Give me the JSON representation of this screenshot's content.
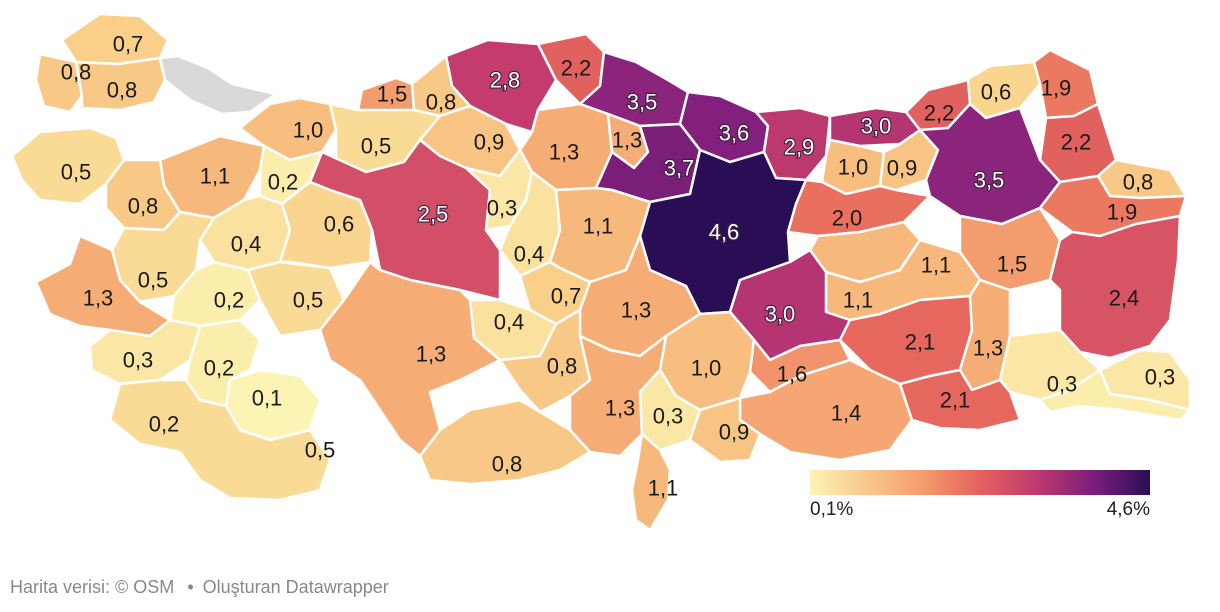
{
  "map": {
    "regions": [
      {
        "label": "0,7",
        "value": 0.7
      },
      {
        "label": "0,8",
        "value": 0.8
      },
      {
        "label": "0,8",
        "value": 0.8
      },
      {
        "label": "2,8",
        "value": 2.8
      },
      {
        "label": "2,2",
        "value": 2.2
      },
      {
        "label": "1,5",
        "value": 1.5
      },
      {
        "label": "0,8",
        "value": 0.8
      },
      {
        "label": "3,5",
        "value": 3.5
      },
      {
        "label": "0,6",
        "value": 0.6
      },
      {
        "label": "1,9",
        "value": 1.9
      },
      {
        "label": "1,0",
        "value": 1.0
      },
      {
        "label": "0,5",
        "value": 0.5
      },
      {
        "label": "0,9",
        "value": 0.9
      },
      {
        "label": "1,3",
        "value": 1.3
      },
      {
        "label": "1,3",
        "value": 1.3
      },
      {
        "label": "3,6",
        "value": 3.6
      },
      {
        "label": "2,9",
        "value": 2.9
      },
      {
        "label": "3,0",
        "value": 3.0
      },
      {
        "label": "2,2",
        "value": 2.2
      },
      {
        "label": "2,2",
        "value": 2.2
      },
      {
        "label": "0,5",
        "value": 0.5
      },
      {
        "label": "1,1",
        "value": 1.1
      },
      {
        "label": "0,2",
        "value": 0.2
      },
      {
        "label": "3,7",
        "value": 3.7
      },
      {
        "label": "1,0",
        "value": 1.0
      },
      {
        "label": "0,9",
        "value": 0.9
      },
      {
        "label": "3,5",
        "value": 3.5
      },
      {
        "label": "0,8",
        "value": 0.8
      },
      {
        "label": "0,8",
        "value": 0.8
      },
      {
        "label": "2,5",
        "value": 2.5
      },
      {
        "label": "0,3",
        "value": 0.3
      },
      {
        "label": "4,6",
        "value": 4.6
      },
      {
        "label": "2,0",
        "value": 2.0
      },
      {
        "label": "1,9",
        "value": 1.9
      },
      {
        "label": "0,4",
        "value": 0.4
      },
      {
        "label": "0,6",
        "value": 0.6
      },
      {
        "label": "1,1",
        "value": 1.1
      },
      {
        "label": "0,4",
        "value": 0.4
      },
      {
        "label": "1,1",
        "value": 1.1
      },
      {
        "label": "1,5",
        "value": 1.5
      },
      {
        "label": "0,5",
        "value": 0.5
      },
      {
        "label": "2,4",
        "value": 2.4
      },
      {
        "label": "1,3",
        "value": 1.3
      },
      {
        "label": "0,2",
        "value": 0.2
      },
      {
        "label": "0,5",
        "value": 0.5
      },
      {
        "label": "0,7",
        "value": 0.7
      },
      {
        "label": "1,1",
        "value": 1.1
      },
      {
        "label": "1,3",
        "value": 1.3
      },
      {
        "label": "3,0",
        "value": 3.0
      },
      {
        "label": "0,4",
        "value": 0.4
      },
      {
        "label": "2,1",
        "value": 2.1
      },
      {
        "label": "1,3",
        "value": 1.3
      },
      {
        "label": "0,3",
        "value": 0.3
      },
      {
        "label": "0,3",
        "value": 0.3
      },
      {
        "label": "1,3",
        "value": 1.3
      },
      {
        "label": "0,8",
        "value": 0.8
      },
      {
        "label": "1,0",
        "value": 1.0
      },
      {
        "label": "1,6",
        "value": 1.6
      },
      {
        "label": "0,3",
        "value": 0.3
      },
      {
        "label": "0,2",
        "value": 0.2
      },
      {
        "label": "0,1",
        "value": 0.1
      },
      {
        "label": "1,3",
        "value": 1.3
      },
      {
        "label": "0,3",
        "value": 0.3
      },
      {
        "label": "1,4",
        "value": 1.4
      },
      {
        "label": "2,1",
        "value": 2.1
      },
      {
        "label": "0,2",
        "value": 0.2
      },
      {
        "label": "0,9",
        "value": 0.9
      },
      {
        "label": "0,5",
        "value": 0.5
      },
      {
        "label": "0,8",
        "value": 0.8
      },
      {
        "label": "1,1",
        "value": 1.1
      }
    ],
    "colors": {
      "low": "#fcf4b4",
      "high": "#2a0e55",
      "nodata": "#d9d9d9",
      "border": "#ffffff"
    }
  },
  "legend": {
    "min": "0,1%",
    "max": "4,6%",
    "min_value": 0.1,
    "max_value": 4.6
  },
  "footer": {
    "map_data": "Harita verisi: © OSM",
    "separator": "•",
    "created_by": "Oluşturan Datawrapper"
  }
}
